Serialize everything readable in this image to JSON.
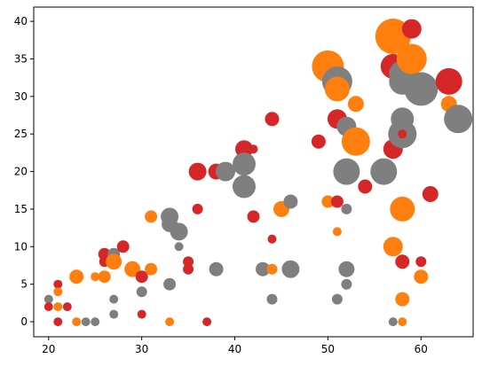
{
  "chart_data": {
    "type": "scatter",
    "title": "",
    "xlabel": "",
    "ylabel": "",
    "xlim": [
      18.4,
      65.6
    ],
    "ylim": [
      -2,
      41.9
    ],
    "x_ticks": [
      20,
      30,
      40,
      50,
      60
    ],
    "y_ticks": [
      0,
      5,
      10,
      15,
      20,
      25,
      30,
      35,
      40
    ],
    "grid": false,
    "legend": "none",
    "colors": {
      "red": "#d62728",
      "orange": "#ff7f0e",
      "gray": "#7f7f7f"
    },
    "points": [
      {
        "x": 20,
        "y": 3,
        "c": "gray",
        "s": 5
      },
      {
        "x": 20,
        "y": 2,
        "c": "red",
        "s": 5
      },
      {
        "x": 21,
        "y": 5,
        "c": "red",
        "s": 5
      },
      {
        "x": 21,
        "y": 4,
        "c": "orange",
        "s": 5
      },
      {
        "x": 21,
        "y": 2,
        "c": "orange",
        "s": 5
      },
      {
        "x": 21,
        "y": 0,
        "c": "red",
        "s": 5
      },
      {
        "x": 22,
        "y": 2,
        "c": "red",
        "s": 5
      },
      {
        "x": 23,
        "y": 6,
        "c": "orange",
        "s": 8
      },
      {
        "x": 23,
        "y": 0,
        "c": "orange",
        "s": 5
      },
      {
        "x": 24,
        "y": 0,
        "c": "gray",
        "s": 5
      },
      {
        "x": 25,
        "y": 6,
        "c": "orange",
        "s": 5
      },
      {
        "x": 25,
        "y": 0,
        "c": "gray",
        "s": 5
      },
      {
        "x": 26,
        "y": 9,
        "c": "red",
        "s": 7
      },
      {
        "x": 26,
        "y": 8,
        "c": "red",
        "s": 6
      },
      {
        "x": 26,
        "y": 6,
        "c": "orange",
        "s": 7
      },
      {
        "x": 27,
        "y": 9,
        "c": "gray",
        "s": 7
      },
      {
        "x": 27,
        "y": 8,
        "c": "orange",
        "s": 9
      },
      {
        "x": 27,
        "y": 3,
        "c": "gray",
        "s": 5
      },
      {
        "x": 27,
        "y": 1,
        "c": "gray",
        "s": 5
      },
      {
        "x": 28,
        "y": 10,
        "c": "red",
        "s": 7
      },
      {
        "x": 29,
        "y": 7,
        "c": "orange",
        "s": 9
      },
      {
        "x": 30,
        "y": 6,
        "c": "red",
        "s": 7
      },
      {
        "x": 30,
        "y": 4,
        "c": "gray",
        "s": 6
      },
      {
        "x": 30,
        "y": 1,
        "c": "red",
        "s": 5
      },
      {
        "x": 31,
        "y": 14,
        "c": "orange",
        "s": 7
      },
      {
        "x": 31,
        "y": 7,
        "c": "orange",
        "s": 7
      },
      {
        "x": 33,
        "y": 14,
        "c": "gray",
        "s": 10
      },
      {
        "x": 33,
        "y": 13,
        "c": "gray",
        "s": 9
      },
      {
        "x": 33,
        "y": 5,
        "c": "gray",
        "s": 7
      },
      {
        "x": 33,
        "y": 0,
        "c": "orange",
        "s": 5
      },
      {
        "x": 34,
        "y": 12,
        "c": "gray",
        "s": 10
      },
      {
        "x": 34,
        "y": 10,
        "c": "gray",
        "s": 5
      },
      {
        "x": 35,
        "y": 8,
        "c": "red",
        "s": 6
      },
      {
        "x": 35,
        "y": 7,
        "c": "red",
        "s": 6
      },
      {
        "x": 36,
        "y": 20,
        "c": "red",
        "s": 10
      },
      {
        "x": 36,
        "y": 15,
        "c": "red",
        "s": 6
      },
      {
        "x": 37,
        "y": 0,
        "c": "red",
        "s": 5
      },
      {
        "x": 38,
        "y": 20,
        "c": "red",
        "s": 9
      },
      {
        "x": 38,
        "y": 7,
        "c": "gray",
        "s": 8
      },
      {
        "x": 39,
        "y": 20,
        "c": "gray",
        "s": 11
      },
      {
        "x": 41,
        "y": 23,
        "c": "red",
        "s": 10
      },
      {
        "x": 41,
        "y": 21,
        "c": "gray",
        "s": 13
      },
      {
        "x": 41,
        "y": 18,
        "c": "gray",
        "s": 13
      },
      {
        "x": 42,
        "y": 23,
        "c": "red",
        "s": 5
      },
      {
        "x": 42,
        "y": 14,
        "c": "red",
        "s": 7
      },
      {
        "x": 43,
        "y": 7,
        "c": "gray",
        "s": 8
      },
      {
        "x": 44,
        "y": 27,
        "c": "red",
        "s": 8
      },
      {
        "x": 44,
        "y": 11,
        "c": "red",
        "s": 5
      },
      {
        "x": 44,
        "y": 7,
        "c": "orange",
        "s": 6
      },
      {
        "x": 44,
        "y": 3,
        "c": "gray",
        "s": 6
      },
      {
        "x": 45,
        "y": 15,
        "c": "orange",
        "s": 9
      },
      {
        "x": 46,
        "y": 16,
        "c": "gray",
        "s": 8
      },
      {
        "x": 46,
        "y": 7,
        "c": "gray",
        "s": 10
      },
      {
        "x": 49,
        "y": 24,
        "c": "red",
        "s": 8
      },
      {
        "x": 50,
        "y": 34,
        "c": "orange",
        "s": 18
      },
      {
        "x": 50,
        "y": 16,
        "c": "orange",
        "s": 7
      },
      {
        "x": 51,
        "y": 32,
        "c": "gray",
        "s": 17
      },
      {
        "x": 51,
        "y": 31,
        "c": "orange",
        "s": 14
      },
      {
        "x": 51,
        "y": 27,
        "c": "red",
        "s": 11
      },
      {
        "x": 51,
        "y": 16,
        "c": "red",
        "s": 7
      },
      {
        "x": 51,
        "y": 12,
        "c": "orange",
        "s": 5
      },
      {
        "x": 51,
        "y": 3,
        "c": "gray",
        "s": 6
      },
      {
        "x": 52,
        "y": 26,
        "c": "gray",
        "s": 11
      },
      {
        "x": 52,
        "y": 20,
        "c": "gray",
        "s": 15
      },
      {
        "x": 52,
        "y": 15,
        "c": "gray",
        "s": 6
      },
      {
        "x": 52,
        "y": 7,
        "c": "gray",
        "s": 9
      },
      {
        "x": 52,
        "y": 5,
        "c": "gray",
        "s": 6
      },
      {
        "x": 53,
        "y": 29,
        "c": "orange",
        "s": 9
      },
      {
        "x": 53,
        "y": 24,
        "c": "orange",
        "s": 16
      },
      {
        "x": 54,
        "y": 18,
        "c": "red",
        "s": 8
      },
      {
        "x": 56,
        "y": 20,
        "c": "gray",
        "s": 15
      },
      {
        "x": 57,
        "y": 38,
        "c": "orange",
        "s": 20
      },
      {
        "x": 57,
        "y": 34,
        "c": "red",
        "s": 14
      },
      {
        "x": 57,
        "y": 23,
        "c": "red",
        "s": 11
      },
      {
        "x": 57,
        "y": 10,
        "c": "orange",
        "s": 11
      },
      {
        "x": 57,
        "y": 0,
        "c": "gray",
        "s": 5
      },
      {
        "x": 58,
        "y": 33,
        "c": "gray",
        "s": 15
      },
      {
        "x": 58,
        "y": 32,
        "c": "gray",
        "s": 15
      },
      {
        "x": 58,
        "y": 27,
        "c": "gray",
        "s": 13
      },
      {
        "x": 58,
        "y": 25,
        "c": "gray",
        "s": 16
      },
      {
        "x": 58,
        "y": 25,
        "c": "red",
        "s": 5
      },
      {
        "x": 58,
        "y": 15,
        "c": "orange",
        "s": 14
      },
      {
        "x": 58,
        "y": 8,
        "c": "red",
        "s": 8
      },
      {
        "x": 58,
        "y": 3,
        "c": "orange",
        "s": 8
      },
      {
        "x": 58,
        "y": 0,
        "c": "orange",
        "s": 5
      },
      {
        "x": 59,
        "y": 39,
        "c": "red",
        "s": 11
      },
      {
        "x": 59,
        "y": 35,
        "c": "orange",
        "s": 17
      },
      {
        "x": 60,
        "y": 31,
        "c": "gray",
        "s": 19
      },
      {
        "x": 60,
        "y": 8,
        "c": "red",
        "s": 6
      },
      {
        "x": 60,
        "y": 6,
        "c": "orange",
        "s": 8
      },
      {
        "x": 61,
        "y": 17,
        "c": "red",
        "s": 9
      },
      {
        "x": 63,
        "y": 32,
        "c": "red",
        "s": 15
      },
      {
        "x": 63,
        "y": 29,
        "c": "orange",
        "s": 9
      },
      {
        "x": 64,
        "y": 27,
        "c": "gray",
        "s": 16
      }
    ]
  }
}
